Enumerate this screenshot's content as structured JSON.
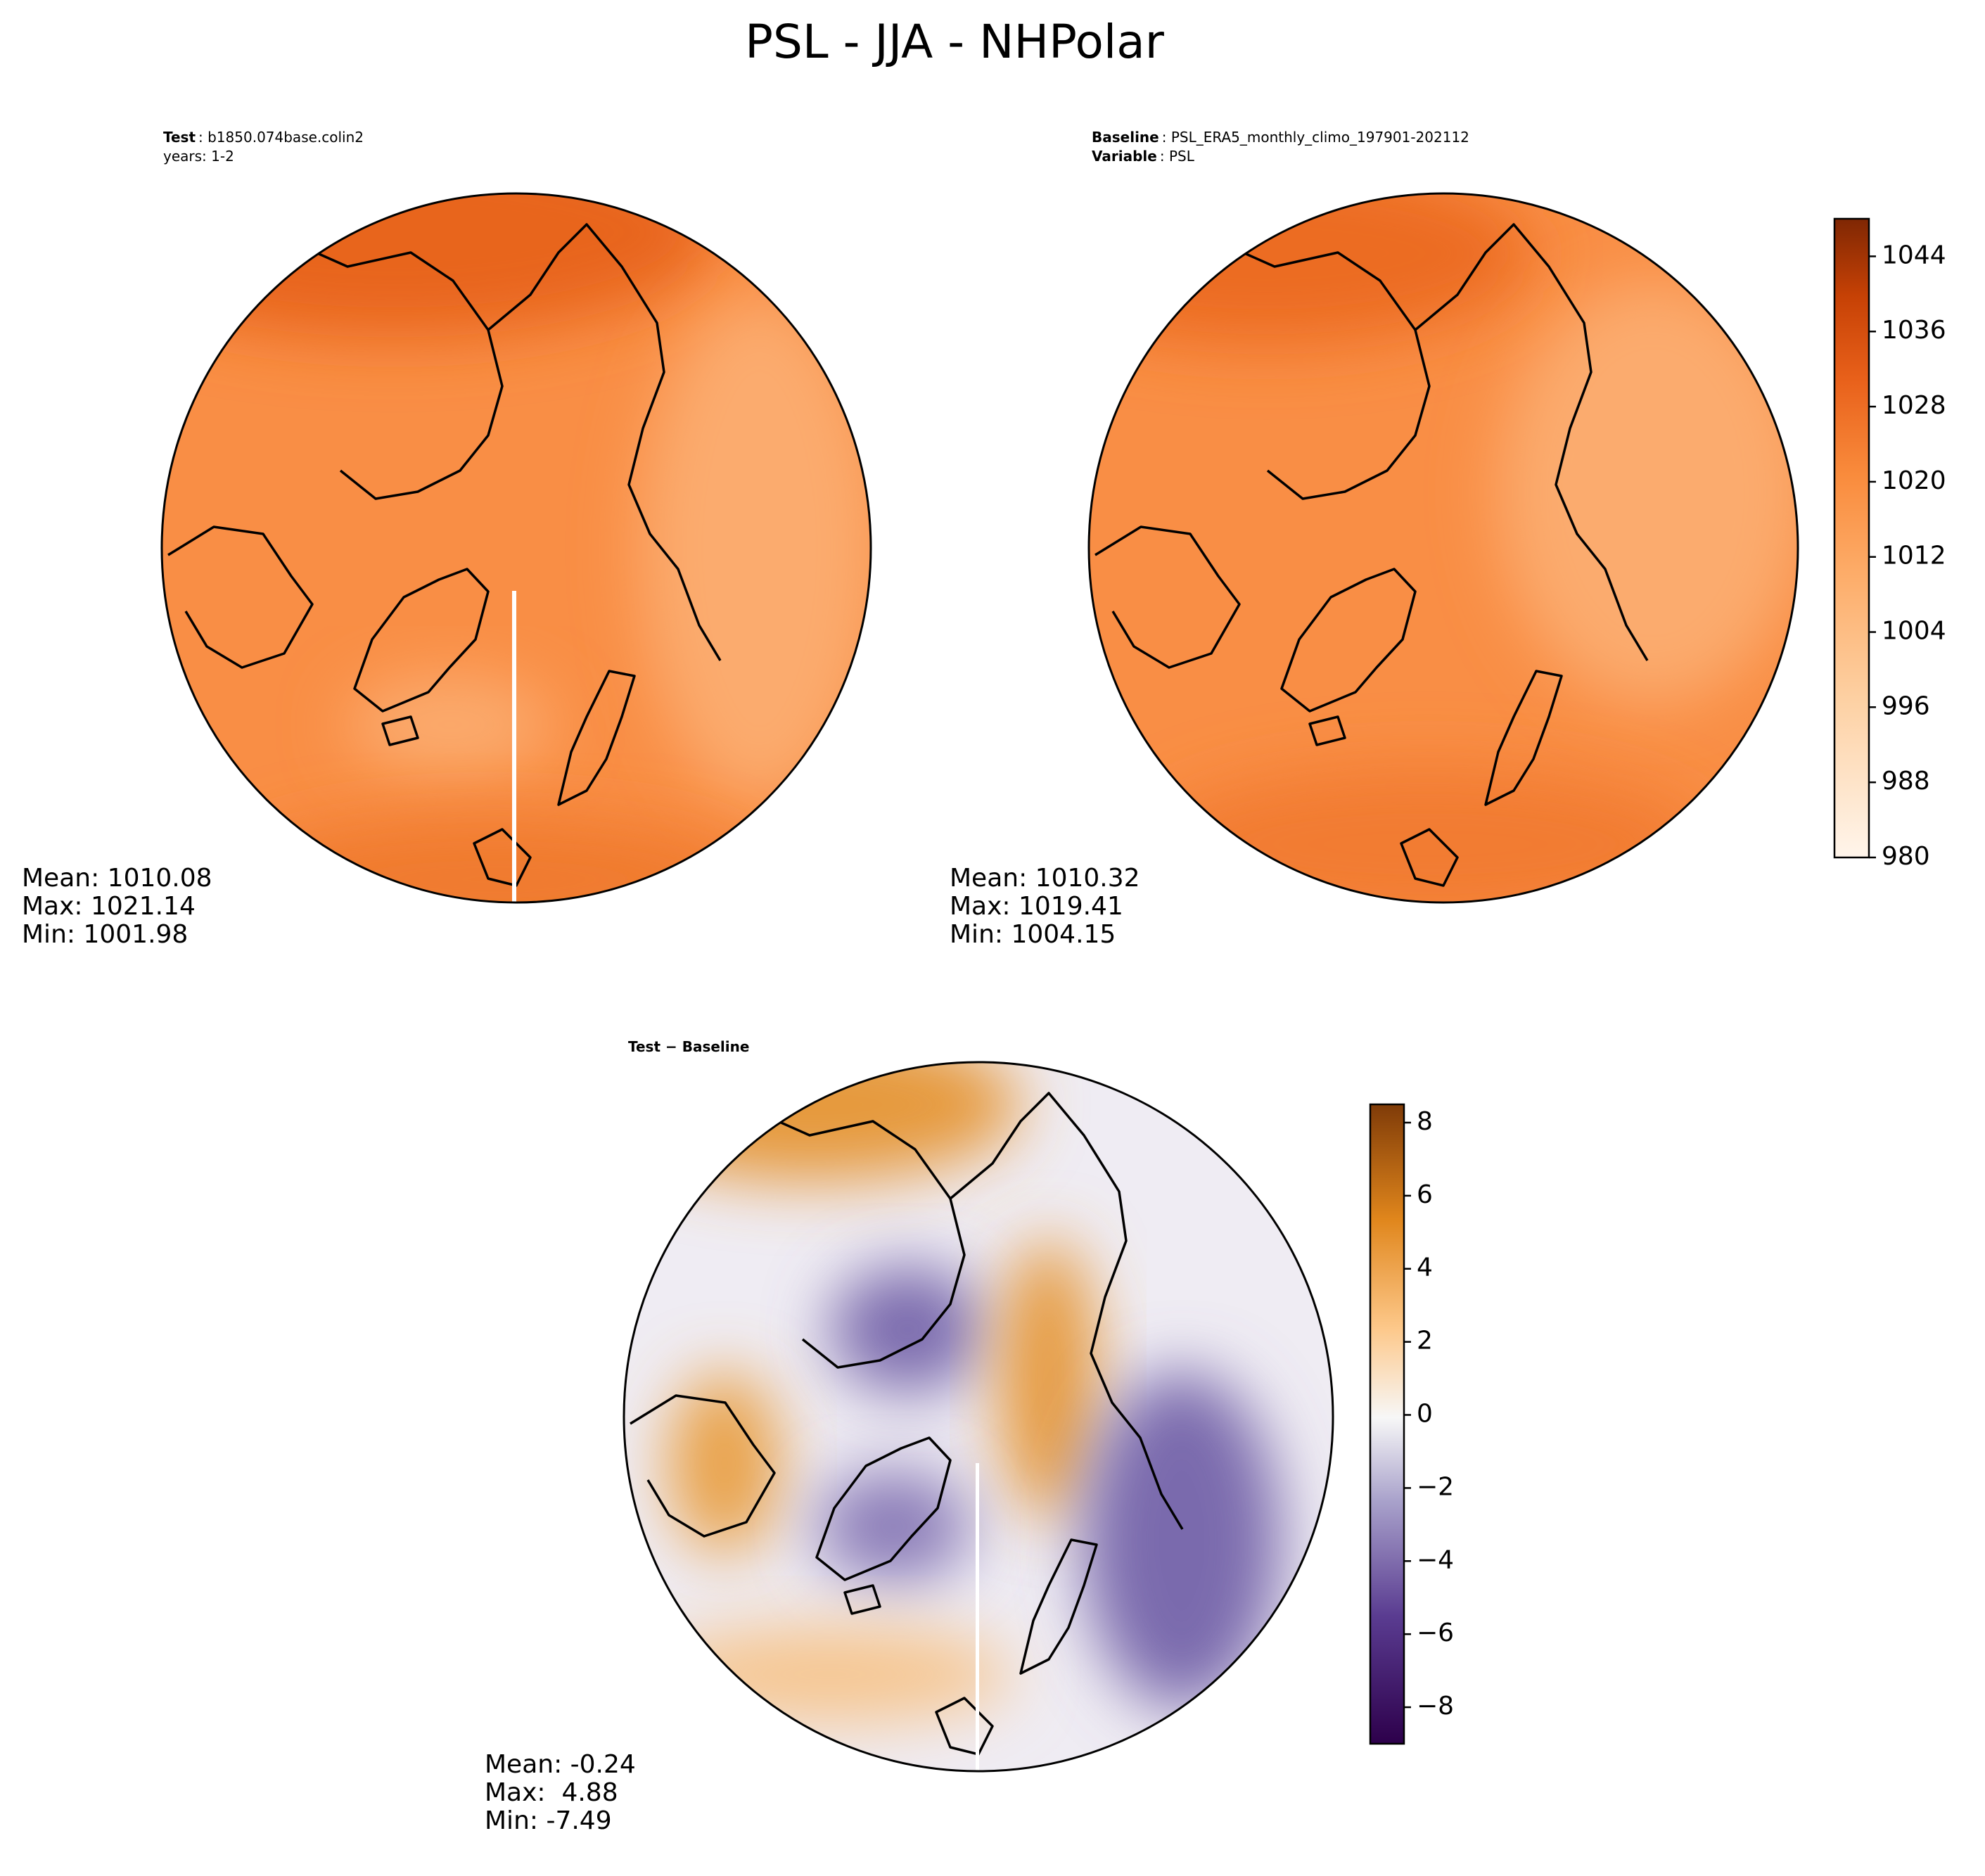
{
  "title": "PSL - JJA - NHPolar",
  "panels": [
    {
      "header": [
        {
          "key": "Test",
          "text": ": b1850.074base.colin2"
        },
        {
          "text": "years: 1-2"
        }
      ],
      "stats": [
        "Mean: 1010.08",
        "Max: 1021.14",
        "Min: 1001.98"
      ]
    },
    {
      "header": [
        {
          "key": "Baseline",
          "text": ": PSL_ERA5_monthly_climo_197901-202112"
        },
        {
          "key": "Variable",
          "text": ": PSL"
        }
      ],
      "stats": [
        "Mean: 1010.32",
        "Max: 1019.41",
        "Min: 1004.15"
      ]
    },
    {
      "header": [
        {
          "key": "Test − Baseline"
        }
      ],
      "stats": [
        "Mean: -0.24",
        "Max:  4.88",
        "Min: -7.49"
      ]
    }
  ],
  "colorbars": [
    {
      "lim": [
        980,
        1048
      ],
      "ticks": [
        980,
        988,
        996,
        1004,
        1012,
        1020,
        1028,
        1036,
        1044
      ]
    },
    {
      "lim": [
        -9,
        8.5
      ],
      "ticks": [
        {
          "value": -8,
          "label": "−8"
        },
        {
          "value": -6,
          "label": "−6"
        },
        {
          "value": -4,
          "label": "−4"
        },
        {
          "value": -2,
          "label": "−2"
        },
        0,
        2,
        4,
        6,
        8
      ]
    }
  ]
}
